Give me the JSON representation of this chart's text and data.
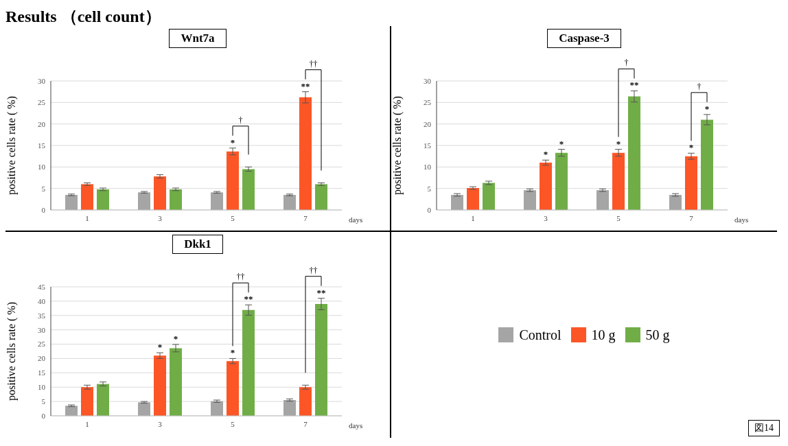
{
  "chart_data": [
    {
      "type": "bar",
      "title": "Wnt7a",
      "xlabel": "days",
      "ylabel": "positive cells rate ( %)",
      "categories": [
        "1",
        "3",
        "5",
        "7"
      ],
      "ylim": [
        0,
        30
      ],
      "yticks": [
        0,
        5,
        10,
        15,
        20,
        25,
        30
      ],
      "grid": "y",
      "series": [
        {
          "color": "#a5a5a5",
          "values": [
            3.5,
            4.1,
            4.1,
            3.5
          ],
          "errors": [
            0.2,
            0.2,
            0.2,
            0.2
          ]
        },
        {
          "color": "#fc5626",
          "values": [
            6.0,
            7.8,
            13.6,
            26.2
          ],
          "errors": [
            0.3,
            0.4,
            0.8,
            1.3
          ],
          "value_labels": [
            null,
            null,
            "*",
            "**"
          ]
        },
        {
          "color": "#70ad47",
          "values": [
            4.8,
            4.8,
            9.5,
            6.0
          ],
          "errors": [
            0.3,
            0.3,
            0.5,
            0.3
          ]
        }
      ],
      "annotations": [
        "Results （cell count）",
        "†",
        "††"
      ]
    },
    {
      "type": "bar",
      "title": "Caspase-3",
      "xlabel": "days",
      "ylabel": "positive cells rate ( %)",
      "categories": [
        "1",
        "3",
        "5",
        "7"
      ],
      "ylim": [
        0,
        30
      ],
      "yticks": [
        0,
        5,
        10,
        15,
        20,
        25,
        30
      ],
      "grid": "y",
      "series": [
        {
          "color": "#a5a5a5",
          "values": [
            3.5,
            4.6,
            4.6,
            3.5
          ],
          "errors": [
            0.3,
            0.3,
            0.3,
            0.3
          ]
        },
        {
          "color": "#fc5626",
          "values": [
            5.1,
            11.0,
            13.3,
            12.5
          ],
          "errors": [
            0.3,
            0.6,
            0.8,
            0.7
          ],
          "value_labels": [
            null,
            "*",
            "*",
            "*"
          ]
        },
        {
          "color": "#70ad47",
          "values": [
            6.3,
            13.3,
            26.4,
            21.0
          ],
          "errors": [
            0.4,
            0.8,
            1.3,
            1.2
          ],
          "value_labels": [
            null,
            "*",
            "**",
            "*"
          ]
        }
      ],
      "annotations": [
        "†",
        "†"
      ]
    },
    {
      "type": "bar",
      "title": "Dkk1",
      "xlabel": "days",
      "ylabel": "positive cells rate ( %)",
      "categories": [
        "1",
        "3",
        "5",
        "7"
      ],
      "ylim": [
        0,
        45
      ],
      "yticks": [
        0,
        5,
        10,
        15,
        20,
        25,
        30,
        35,
        40,
        45
      ],
      "grid": "y",
      "legend": "right",
      "series": [
        {
          "name": "Control",
          "color": "#a5a5a5",
          "values": [
            3.5,
            4.7,
            5.1,
            5.5
          ],
          "errors": [
            0.3,
            0.3,
            0.4,
            0.4
          ]
        },
        {
          "name": "10 g",
          "color": "#fc5626",
          "values": [
            10.0,
            21.0,
            19.1,
            10.0
          ],
          "errors": [
            0.7,
            1.0,
            0.9,
            0.7
          ],
          "value_labels": [
            null,
            "*",
            "*",
            null
          ]
        },
        {
          "name": "50 g",
          "color": "#70ad47",
          "values": [
            11.1,
            23.6,
            36.9,
            39.0
          ],
          "errors": [
            0.7,
            1.3,
            1.8,
            2.0
          ],
          "value_labels": [
            null,
            "*",
            "**",
            "**"
          ]
        }
      ],
      "annotations": [
        "図14",
        "††",
        "††"
      ]
    }
  ]
}
